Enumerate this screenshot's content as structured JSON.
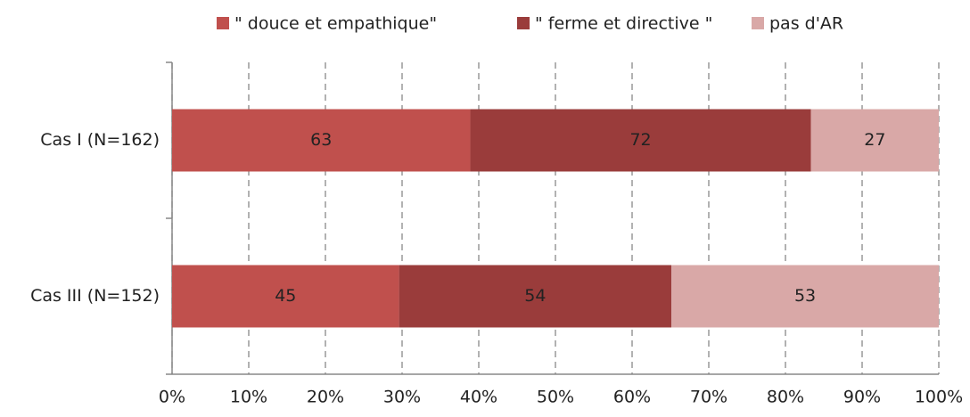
{
  "chart_data": {
    "type": "bar",
    "orientation": "horizontal",
    "stacking": "percent",
    "categories": [
      "Cas I (N=162)",
      "Cas III (N=152)"
    ],
    "series": [
      {
        "name": "\" douce et empathique\"",
        "color": "#c0504d",
        "values": [
          63,
          45
        ]
      },
      {
        "name": "\" ferme et directive \"",
        "color": "#9a3c3b",
        "values": [
          72,
          54
        ]
      },
      {
        "name": "pas d'AR",
        "color": "#d9a8a7",
        "values": [
          27,
          53
        ]
      }
    ],
    "xlim": [
      0,
      100
    ],
    "xticks": [
      {
        "value": 0,
        "label": "0%"
      },
      {
        "value": 10,
        "label": "10%"
      },
      {
        "value": 20,
        "label": "20%"
      },
      {
        "value": 30,
        "label": "30%"
      },
      {
        "value": 40,
        "label": "40%"
      },
      {
        "value": 50,
        "label": "50%"
      },
      {
        "value": 60,
        "label": "60%"
      },
      {
        "value": 70,
        "label": "70%"
      },
      {
        "value": 80,
        "label": "80%"
      },
      {
        "value": 90,
        "label": "90%"
      },
      {
        "value": 100,
        "label": "100%"
      }
    ],
    "grid": true,
    "legend": "top"
  }
}
